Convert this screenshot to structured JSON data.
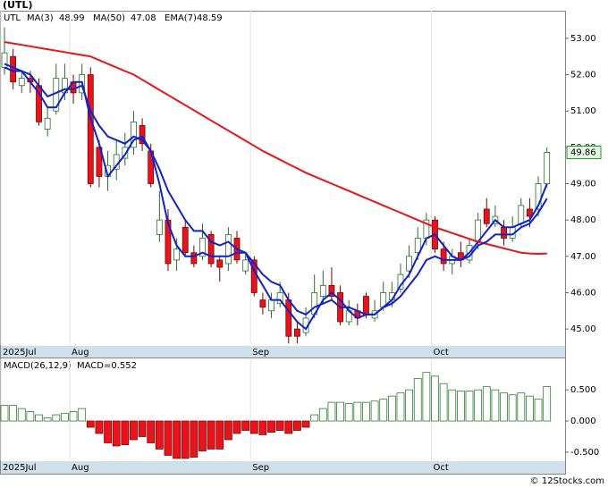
{
  "chart_data": [
    {
      "type": "candlestick",
      "title": "(UTL)",
      "symbol": "UTL",
      "source": "© 12Stocks.com",
      "categories": [
        "2025Jul",
        null,
        null,
        null,
        null,
        null,
        null,
        null,
        "Aug",
        null,
        null,
        null,
        null,
        null,
        null,
        null,
        null,
        null,
        null,
        null,
        null,
        null,
        null,
        null,
        null,
        null,
        null,
        null,
        null,
        "Sep",
        null,
        null,
        null,
        null,
        null,
        null,
        null,
        null,
        null,
        null,
        null,
        null,
        null,
        null,
        null,
        null,
        null,
        null,
        null,
        null,
        "Oct",
        null,
        null,
        null,
        null,
        null,
        null,
        null,
        null,
        null,
        null,
        null,
        null,
        null
      ],
      "open": [
        52.2,
        52.5,
        51.7,
        51.9,
        51.7,
        50.5,
        51.0,
        51.5,
        51.8,
        51.5,
        52.0,
        50.0,
        49.2,
        49.4,
        49.7,
        50.0,
        50.6,
        49.9,
        47.6,
        48.0,
        46.9,
        47.8,
        47.1,
        47.0,
        47.6,
        46.9,
        46.8,
        47.5,
        46.6,
        46.9,
        45.8,
        45.5,
        45.7,
        45.8,
        45.0,
        44.9,
        45.4,
        45.9,
        46.2,
        46.0,
        45.2,
        45.5,
        45.9,
        45.3,
        45.6,
        45.8,
        46.1,
        46.6,
        47.1,
        47.5,
        48.0,
        47.2,
        46.8,
        47.1,
        46.9,
        47.4,
        48.3,
        47.9,
        47.8,
        47.5,
        47.9,
        48.3,
        48.3,
        49.0
      ],
      "high": [
        53.3,
        52.7,
        52.1,
        52.1,
        51.9,
        51.1,
        52.3,
        52.3,
        52.0,
        52.3,
        52.2,
        50.2,
        49.9,
        50.2,
        50.4,
        51.0,
        50.8,
        50.1,
        48.8,
        48.3,
        47.5,
        48.0,
        47.3,
        47.9,
        47.7,
        47.0,
        47.8,
        47.7,
        47.1,
        47.0,
        46.0,
        46.0,
        46.3,
        46.0,
        45.2,
        45.6,
        46.5,
        46.6,
        46.7,
        46.2,
        45.8,
        45.7,
        46.0,
        45.8,
        46.3,
        46.3,
        46.8,
        47.3,
        47.8,
        48.2,
        48.1,
        47.4,
        47.2,
        47.4,
        47.5,
        48.2,
        48.6,
        48.4,
        48.0,
        48.1,
        48.6,
        48.6,
        49.2,
        50.0
      ],
      "low": [
        52.0,
        51.6,
        51.5,
        51.5,
        50.6,
        50.3,
        50.9,
        51.3,
        51.2,
        51.3,
        48.9,
        48.9,
        48.8,
        49.1,
        49.5,
        49.8,
        49.9,
        48.9,
        47.4,
        46.6,
        46.6,
        47.0,
        46.7,
        46.9,
        46.7,
        46.3,
        46.6,
        46.8,
        46.5,
        45.9,
        45.4,
        45.3,
        45.6,
        44.6,
        44.6,
        44.8,
        45.3,
        45.7,
        45.8,
        45.1,
        45.1,
        45.1,
        45.3,
        45.2,
        45.5,
        45.6,
        46.0,
        46.4,
        46.9,
        47.3,
        47.1,
        46.6,
        46.5,
        46.7,
        46.8,
        47.2,
        47.8,
        47.8,
        47.3,
        47.4,
        47.8,
        47.8,
        48.1,
        48.9
      ],
      "close": [
        52.6,
        51.8,
        51.9,
        51.8,
        50.7,
        50.8,
        51.9,
        51.9,
        51.5,
        52.0,
        49.0,
        49.2,
        49.5,
        49.8,
        50.0,
        50.7,
        50.1,
        49.0,
        48.0,
        46.8,
        47.2,
        47.1,
        46.8,
        47.5,
        46.8,
        46.7,
        47.6,
        46.9,
        46.9,
        46.0,
        45.6,
        45.8,
        46.0,
        44.8,
        44.8,
        45.3,
        46.0,
        46.2,
        45.9,
        45.2,
        45.5,
        45.3,
        45.4,
        45.5,
        46.0,
        46.0,
        46.5,
        47.0,
        47.5,
        48.0,
        47.2,
        46.8,
        47.0,
        46.9,
        47.3,
        48.0,
        47.9,
        48.1,
        47.5,
        47.8,
        48.4,
        48.1,
        49.0,
        49.86
      ],
      "up_color": "#ffffff",
      "up_stroke": "#2e6b2e",
      "down_color": "#e8141b",
      "down_stroke": "#7a0000",
      "series": [
        {
          "name": "MA(3)",
          "color": "#1022c8",
          "values": [
            52.2,
            52.1,
            52.1,
            51.8,
            51.5,
            51.1,
            51.1,
            51.5,
            51.8,
            51.8,
            50.8,
            50.1,
            49.2,
            49.5,
            49.8,
            50.2,
            50.3,
            49.9,
            49.0,
            47.9,
            47.3,
            47.0,
            47.0,
            47.1,
            47.0,
            47.0,
            47.0,
            47.1,
            47.1,
            46.6,
            46.2,
            45.8,
            45.8,
            45.5,
            45.2,
            45.0,
            45.4,
            45.8,
            46.0,
            45.8,
            45.5,
            45.3,
            45.4,
            45.4,
            45.6,
            45.8,
            46.2,
            46.5,
            47.0,
            47.5,
            47.6,
            47.3,
            47.0,
            46.9,
            47.1,
            47.4,
            47.7,
            48.0,
            47.8,
            47.8,
            47.9,
            48.0,
            48.4,
            48.99
          ]
        },
        {
          "name": "MA(50)",
          "color": "#e8141b",
          "values": [
            52.9,
            52.86,
            52.82,
            52.78,
            52.74,
            52.7,
            52.66,
            52.62,
            52.58,
            52.54,
            52.5,
            52.4,
            52.3,
            52.2,
            52.1,
            52.0,
            51.86,
            51.72,
            51.58,
            51.44,
            51.3,
            51.16,
            51.02,
            50.88,
            50.74,
            50.6,
            50.46,
            50.32,
            50.18,
            50.04,
            49.9,
            49.78,
            49.66,
            49.54,
            49.42,
            49.3,
            49.2,
            49.1,
            49.0,
            48.9,
            48.8,
            48.7,
            48.6,
            48.5,
            48.4,
            48.3,
            48.2,
            48.1,
            48.0,
            47.9,
            47.8,
            47.72,
            47.64,
            47.56,
            47.48,
            47.4,
            47.34,
            47.28,
            47.22,
            47.16,
            47.1,
            47.08,
            47.07,
            47.08
          ]
        },
        {
          "name": "EMA(7)",
          "color": "#1022c8",
          "values": [
            52.3,
            52.2,
            52.1,
            52.0,
            51.7,
            51.4,
            51.5,
            51.6,
            51.6,
            51.7,
            51.0,
            50.6,
            50.3,
            50.2,
            50.1,
            50.3,
            50.2,
            49.9,
            49.4,
            48.8,
            48.4,
            48.0,
            47.7,
            47.7,
            47.4,
            47.3,
            47.4,
            47.2,
            47.1,
            46.8,
            46.5,
            46.3,
            46.2,
            45.8,
            45.5,
            45.4,
            45.6,
            45.7,
            45.8,
            45.6,
            45.6,
            45.5,
            45.4,
            45.4,
            45.6,
            45.7,
            45.9,
            46.2,
            46.5,
            46.9,
            47.0,
            46.9,
            46.9,
            46.9,
            47.0,
            47.3,
            47.4,
            47.6,
            47.6,
            47.6,
            47.8,
            47.9,
            48.2,
            48.59
          ]
        }
      ],
      "last_color": "#1a9a1a",
      "ylim": [
        44.56,
        53.76
      ],
      "yticks": [
        {
          "value": 45,
          "label": "45.00"
        },
        {
          "value": 46,
          "label": "46.00"
        },
        {
          "value": 47,
          "label": "47.00"
        },
        {
          "value": 48,
          "label": "48.00"
        },
        {
          "value": 49,
          "label": "49.00"
        },
        {
          "value": 50,
          "label": "50.00"
        },
        {
          "value": 51,
          "label": "51.00"
        },
        {
          "value": 52,
          "label": "52.00"
        },
        {
          "value": 53,
          "label": "53.00"
        }
      ]
    },
    {
      "type": "bar",
      "title": "MACD(26,12,9)",
      "label": "MACD=0.552",
      "categories": [
        "2025Jul",
        null,
        null,
        null,
        null,
        null,
        null,
        null,
        "Aug",
        null,
        null,
        null,
        null,
        null,
        null,
        null,
        null,
        null,
        null,
        null,
        null,
        null,
        null,
        null,
        null,
        null,
        null,
        null,
        null,
        "Sep",
        null,
        null,
        null,
        null,
        null,
        null,
        null,
        null,
        null,
        null,
        null,
        null,
        null,
        null,
        null,
        null,
        null,
        null,
        null,
        null,
        "Oct",
        null,
        null,
        null,
        null,
        null,
        null,
        null,
        null,
        null,
        null,
        null,
        null,
        null
      ],
      "values": [
        0.25,
        0.25,
        0.2,
        0.15,
        0.1,
        0.05,
        0.1,
        0.12,
        0.15,
        0.2,
        -0.1,
        -0.2,
        -0.35,
        -0.4,
        -0.38,
        -0.3,
        -0.25,
        -0.35,
        -0.45,
        -0.55,
        -0.6,
        -0.6,
        -0.58,
        -0.48,
        -0.45,
        -0.45,
        -0.3,
        -0.2,
        -0.15,
        -0.2,
        -0.22,
        -0.18,
        -0.15,
        -0.2,
        -0.15,
        -0.1,
        0.1,
        0.2,
        0.3,
        0.3,
        0.28,
        0.3,
        0.3,
        0.32,
        0.35,
        0.4,
        0.45,
        0.5,
        0.68,
        0.78,
        0.72,
        0.6,
        0.5,
        0.48,
        0.48,
        0.5,
        0.55,
        0.5,
        0.45,
        0.42,
        0.45,
        0.4,
        0.35,
        0.552
      ],
      "pos_color": "#2e7d2e",
      "neg_color": "#e8141b",
      "ylim": [
        -0.63,
        0.99
      ],
      "yticks": [
        {
          "value": -0.5,
          "label": "-0.500"
        },
        {
          "value": 0,
          "label": "0.000"
        },
        {
          "value": 0.5,
          "label": "0.500"
        }
      ]
    }
  ]
}
